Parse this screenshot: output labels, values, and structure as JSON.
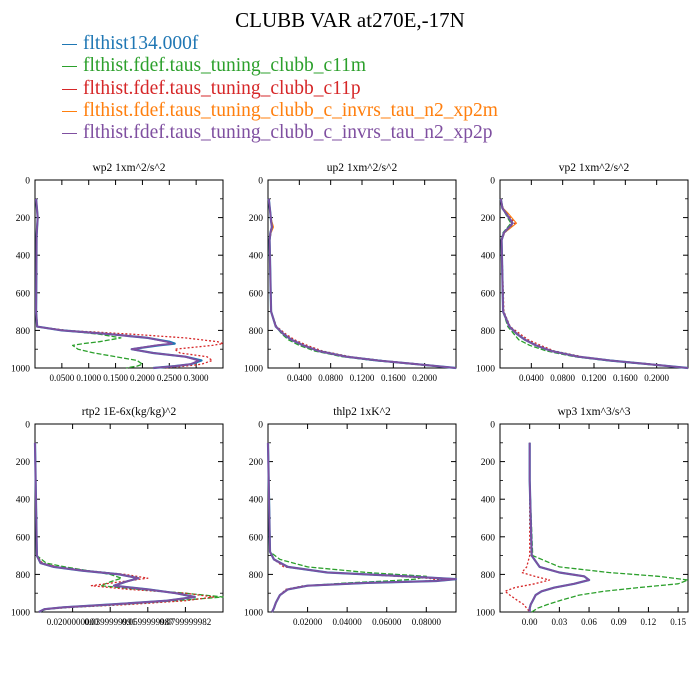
{
  "title": "CLUBB VAR at270E,-17N",
  "legend": [
    {
      "label": "flthist134.000f",
      "color": "#1f77b4"
    },
    {
      "label": "flthist.fdef.taus_tuning_clubb_c11m",
      "color": "#2ca02c"
    },
    {
      "label": "flthist.fdef.taus_tuning_clubb_c11p",
      "color": "#d62728"
    },
    {
      "label": "flthist.fdef.taus_tuning_clubb_c_invrs_tau_n2_xp2m",
      "color": "#ff7f0e"
    },
    {
      "label": "flthist.fdef.taus_tuning_clubb_c_invrs_tau_n2_xp2p",
      "color": "#7f4fa0"
    }
  ],
  "chart_data": [
    {
      "type": "line",
      "title": "wp2  1xm^2/s^2",
      "xlim": [
        0.0,
        0.35
      ],
      "ylim": [
        0,
        1000
      ],
      "y_inverted": true,
      "xticks": [
        "0.0500",
        "0.1000",
        "0.1500",
        "0.2000",
        "0.2500",
        "0.3000"
      ],
      "xtick_values": [
        0.05,
        0.1,
        0.15,
        0.2,
        0.25,
        0.3
      ],
      "yticks": [
        "0",
        "200",
        "400",
        "600",
        "800",
        "1000"
      ],
      "y": [
        100,
        200,
        250,
        300,
        700,
        780,
        800,
        820,
        840,
        860,
        870,
        880,
        900,
        920,
        940,
        960,
        980,
        990,
        1000
      ],
      "series": [
        {
          "values": [
            0.002,
            0.005,
            0.004,
            0.003,
            0.002,
            0.004,
            0.05,
            0.14,
            0.21,
            0.25,
            0.26,
            0.23,
            0.18,
            0.22,
            0.28,
            0.31,
            0.29,
            0.26,
            0.22
          ]
        },
        {
          "values": [
            0.002,
            0.005,
            0.004,
            0.003,
            0.002,
            0.004,
            0.05,
            0.12,
            0.16,
            0.12,
            0.09,
            0.07,
            0.08,
            0.11,
            0.15,
            0.19,
            0.2,
            0.19,
            0.17
          ]
        },
        {
          "values": [
            0.002,
            0.005,
            0.004,
            0.003,
            0.002,
            0.005,
            0.06,
            0.18,
            0.28,
            0.34,
            0.35,
            0.33,
            0.26,
            0.27,
            0.32,
            0.33,
            0.31,
            0.28,
            0.24
          ]
        },
        {
          "values": [
            0.002,
            0.005,
            0.004,
            0.003,
            0.002,
            0.004,
            0.05,
            0.14,
            0.21,
            0.25,
            0.26,
            0.23,
            0.18,
            0.22,
            0.28,
            0.31,
            0.29,
            0.26,
            0.22
          ]
        },
        {
          "values": [
            0.002,
            0.005,
            0.004,
            0.003,
            0.002,
            0.004,
            0.05,
            0.14,
            0.21,
            0.245,
            0.255,
            0.225,
            0.18,
            0.22,
            0.28,
            0.305,
            0.29,
            0.26,
            0.22
          ]
        }
      ]
    },
    {
      "type": "line",
      "title": "up2  1xm^2/s^2",
      "xlim": [
        0.0,
        0.24
      ],
      "ylim": [
        0,
        1000
      ],
      "y_inverted": true,
      "xticks": [
        "0.0400",
        "0.0800",
        "0.1200",
        "0.1600",
        "0.2000"
      ],
      "xtick_values": [
        0.04,
        0.08,
        0.12,
        0.16,
        0.2
      ],
      "yticks": [
        "0",
        "200",
        "400",
        "600",
        "800",
        "1000"
      ],
      "y": [
        100,
        180,
        220,
        250,
        280,
        320,
        700,
        780,
        820,
        850,
        880,
        910,
        940,
        960,
        980,
        1000
      ],
      "series": [
        {
          "values": [
            0.001,
            0.003,
            0.004,
            0.005,
            0.003,
            0.002,
            0.004,
            0.01,
            0.02,
            0.03,
            0.045,
            0.065,
            0.1,
            0.14,
            0.19,
            0.24
          ]
        },
        {
          "values": [
            0.001,
            0.003,
            0.004,
            0.005,
            0.003,
            0.002,
            0.004,
            0.01,
            0.018,
            0.026,
            0.04,
            0.06,
            0.095,
            0.135,
            0.185,
            0.24
          ]
        },
        {
          "values": [
            0.001,
            0.003,
            0.004,
            0.006,
            0.004,
            0.002,
            0.004,
            0.011,
            0.023,
            0.034,
            0.05,
            0.07,
            0.105,
            0.145,
            0.195,
            0.24
          ]
        },
        {
          "values": [
            0.001,
            0.003,
            0.005,
            0.007,
            0.004,
            0.002,
            0.004,
            0.01,
            0.02,
            0.03,
            0.045,
            0.065,
            0.1,
            0.14,
            0.19,
            0.24
          ]
        },
        {
          "values": [
            0.001,
            0.003,
            0.004,
            0.005,
            0.003,
            0.002,
            0.004,
            0.01,
            0.02,
            0.03,
            0.045,
            0.065,
            0.1,
            0.14,
            0.19,
            0.24
          ]
        }
      ]
    },
    {
      "type": "line",
      "title": "vp2  1xm^2/s^2",
      "xlim": [
        0.0,
        0.24
      ],
      "ylim": [
        0,
        1000
      ],
      "y_inverted": true,
      "xticks": [
        "0.0400",
        "0.0800",
        "0.1200",
        "0.1600",
        "0.2000"
      ],
      "xtick_values": [
        0.04,
        0.08,
        0.12,
        0.16,
        0.2
      ],
      "yticks": [
        "0",
        "200",
        "400",
        "600",
        "800",
        "1000"
      ],
      "y": [
        100,
        150,
        180,
        210,
        230,
        250,
        280,
        320,
        700,
        780,
        820,
        850,
        880,
        910,
        940,
        960,
        980,
        1000
      ],
      "series": [
        {
          "values": [
            0.001,
            0.003,
            0.008,
            0.013,
            0.016,
            0.012,
            0.005,
            0.002,
            0.004,
            0.012,
            0.022,
            0.032,
            0.046,
            0.066,
            0.1,
            0.14,
            0.19,
            0.24
          ]
        },
        {
          "values": [
            0.001,
            0.003,
            0.007,
            0.011,
            0.014,
            0.01,
            0.004,
            0.002,
            0.004,
            0.01,
            0.018,
            0.024,
            0.038,
            0.06,
            0.095,
            0.135,
            0.185,
            0.24
          ]
        },
        {
          "values": [
            0.001,
            0.004,
            0.009,
            0.015,
            0.019,
            0.014,
            0.006,
            0.002,
            0.005,
            0.013,
            0.026,
            0.036,
            0.052,
            0.07,
            0.105,
            0.145,
            0.195,
            0.24
          ]
        },
        {
          "values": [
            0.001,
            0.004,
            0.011,
            0.017,
            0.021,
            0.015,
            0.006,
            0.002,
            0.004,
            0.012,
            0.022,
            0.032,
            0.046,
            0.066,
            0.1,
            0.14,
            0.19,
            0.24
          ]
        },
        {
          "values": [
            0.001,
            0.003,
            0.008,
            0.013,
            0.016,
            0.012,
            0.005,
            0.002,
            0.004,
            0.012,
            0.022,
            0.032,
            0.046,
            0.066,
            0.1,
            0.14,
            0.19,
            0.24
          ]
        }
      ]
    },
    {
      "type": "line",
      "title": "rtp2  1E-6x(kg/kg)^2",
      "xlim": [
        0.0,
        0.1
      ],
      "ylim": [
        0,
        1000
      ],
      "y_inverted": true,
      "xticks": [
        "0.0200000000",
        "0.0399999991",
        "0.0599999987",
        "0.0799999982"
      ],
      "xtick_values": [
        0.02,
        0.04,
        0.06,
        0.08
      ],
      "yticks": [
        "0",
        "200",
        "400",
        "600",
        "800",
        "1000"
      ],
      "y": [
        100,
        700,
        740,
        760,
        780,
        800,
        820,
        840,
        860,
        880,
        900,
        920,
        940,
        960,
        975,
        985,
        1000
      ],
      "series": [
        {
          "values": [
            0.0,
            0.001,
            0.003,
            0.01,
            0.025,
            0.045,
            0.055,
            0.048,
            0.042,
            0.06,
            0.075,
            0.085,
            0.07,
            0.04,
            0.015,
            0.005,
            0.002
          ]
        },
        {
          "values": [
            0.0,
            0.001,
            0.006,
            0.016,
            0.028,
            0.04,
            0.046,
            0.04,
            0.035,
            0.055,
            0.08,
            0.1,
            0.075,
            0.045,
            0.018,
            0.006,
            0.002
          ]
        },
        {
          "values": [
            0.0,
            0.001,
            0.004,
            0.012,
            0.028,
            0.048,
            0.06,
            0.045,
            0.03,
            0.05,
            0.08,
            0.095,
            0.08,
            0.05,
            0.02,
            0.006,
            0.002
          ]
        },
        {
          "values": [
            0.0,
            0.001,
            0.003,
            0.01,
            0.025,
            0.045,
            0.055,
            0.048,
            0.042,
            0.06,
            0.075,
            0.085,
            0.07,
            0.04,
            0.015,
            0.005,
            0.002
          ]
        },
        {
          "values": [
            0.0,
            0.001,
            0.003,
            0.01,
            0.025,
            0.045,
            0.055,
            0.048,
            0.042,
            0.06,
            0.075,
            0.085,
            0.07,
            0.04,
            0.015,
            0.005,
            0.002
          ]
        }
      ]
    },
    {
      "type": "line",
      "title": "thlp2  1xK^2",
      "xlim": [
        0.0,
        0.095
      ],
      "ylim": [
        0,
        1000
      ],
      "y_inverted": true,
      "xticks": [
        "0.02000",
        "0.04000",
        "0.06000",
        "0.08000"
      ],
      "xtick_values": [
        0.02,
        0.04,
        0.06,
        0.08
      ],
      "yticks": [
        "0",
        "200",
        "400",
        "600",
        "800",
        "1000"
      ],
      "y": [
        100,
        680,
        720,
        760,
        790,
        810,
        825,
        835,
        845,
        860,
        880,
        910,
        950,
        980,
        1000
      ],
      "series": [
        {
          "values": [
            0.0,
            0.001,
            0.003,
            0.01,
            0.03,
            0.07,
            0.095,
            0.085,
            0.05,
            0.02,
            0.01,
            0.006,
            0.004,
            0.003,
            0.002
          ]
        },
        {
          "values": [
            0.0,
            0.001,
            0.006,
            0.02,
            0.05,
            0.08,
            0.075,
            0.06,
            0.04,
            0.02,
            0.01,
            0.006,
            0.004,
            0.003,
            0.002
          ]
        },
        {
          "values": [
            0.0,
            0.001,
            0.003,
            0.008,
            0.03,
            0.065,
            0.088,
            0.08,
            0.045,
            0.018,
            0.009,
            0.006,
            0.004,
            0.003,
            0.002
          ]
        },
        {
          "values": [
            0.0,
            0.001,
            0.003,
            0.01,
            0.03,
            0.07,
            0.095,
            0.085,
            0.05,
            0.02,
            0.01,
            0.006,
            0.004,
            0.003,
            0.002
          ]
        },
        {
          "values": [
            0.0,
            0.001,
            0.003,
            0.01,
            0.03,
            0.07,
            0.095,
            0.085,
            0.05,
            0.02,
            0.01,
            0.006,
            0.004,
            0.003,
            0.002
          ]
        }
      ]
    },
    {
      "type": "line",
      "title": "wp3  1xm^3/s^3",
      "xlim": [
        -0.03,
        0.16
      ],
      "ylim": [
        0,
        1000
      ],
      "y_inverted": true,
      "xticks": [
        "0.00",
        "0.03",
        "0.06",
        "0.09",
        "0.12",
        "0.15"
      ],
      "xtick_values": [
        0.0,
        0.03,
        0.06,
        0.09,
        0.12,
        0.15
      ],
      "yticks": [
        "0",
        "200",
        "400",
        "600",
        "800",
        "1000"
      ],
      "y": [
        100,
        300,
        700,
        760,
        790,
        810,
        830,
        850,
        870,
        890,
        910,
        940,
        960,
        980,
        1000
      ],
      "series": [
        {
          "values": [
            0.0,
            0.0,
            0.002,
            0.01,
            0.03,
            0.055,
            0.06,
            0.045,
            0.025,
            0.012,
            0.006,
            0.003,
            0.001,
            0.0,
            0.0
          ]
        },
        {
          "values": [
            0.0,
            0.0,
            0.003,
            0.03,
            0.08,
            0.13,
            0.16,
            0.15,
            0.11,
            0.075,
            0.05,
            0.03,
            0.018,
            0.008,
            0.002
          ]
        },
        {
          "values": [
            0.0,
            0.0,
            0.0,
            -0.003,
            -0.008,
            0.005,
            0.02,
            0.005,
            -0.015,
            -0.025,
            -0.02,
            -0.012,
            -0.006,
            -0.003,
            0.0
          ]
        },
        {
          "values": [
            0.0,
            0.0,
            0.002,
            0.01,
            0.03,
            0.055,
            0.06,
            0.045,
            0.025,
            0.012,
            0.006,
            0.003,
            0.001,
            0.0,
            0.0
          ]
        },
        {
          "values": [
            0.0,
            0.0,
            0.002,
            0.01,
            0.03,
            0.055,
            0.06,
            0.045,
            0.025,
            0.012,
            0.006,
            0.003,
            0.001,
            0.0,
            0.0
          ]
        }
      ]
    }
  ]
}
